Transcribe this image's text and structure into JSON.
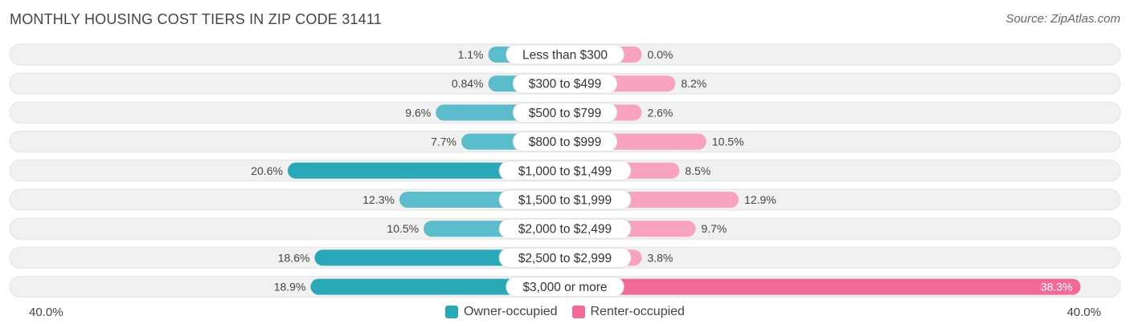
{
  "colors": {
    "owner": "#5bbccc",
    "owner_strong": "#2aa8b8",
    "renter": "#f7a3bf",
    "renter_strong": "#f06b95",
    "row_bg": "#f1f1f1"
  },
  "chart_data": {
    "type": "bar",
    "orientation": "horizontal-diverging",
    "title": "MONTHLY HOUSING COST TIERS IN ZIP CODE 31411",
    "source": "Source: ZipAtlas.com",
    "categories": [
      "Less than $300",
      "$300 to $499",
      "$500 to $799",
      "$800 to $999",
      "$1,000 to $1,499",
      "$1,500 to $1,999",
      "$2,000 to $2,499",
      "$2,500 to $2,999",
      "$3,000 or more"
    ],
    "series": [
      {
        "name": "Owner-occupied",
        "values": [
          1.1,
          0.84,
          9.6,
          7.7,
          20.6,
          12.3,
          10.5,
          18.6,
          18.9
        ],
        "labels": [
          "1.1%",
          "0.84%",
          "9.6%",
          "7.7%",
          "20.6%",
          "12.3%",
          "10.5%",
          "18.6%",
          "18.9%"
        ]
      },
      {
        "name": "Renter-occupied",
        "values": [
          0.0,
          8.2,
          2.6,
          10.5,
          8.5,
          12.9,
          9.7,
          3.8,
          38.3
        ],
        "labels": [
          "0.0%",
          "8.2%",
          "2.6%",
          "10.5%",
          "8.5%",
          "12.9%",
          "9.7%",
          "3.8%",
          "38.3%"
        ]
      }
    ],
    "xlim": [
      -40,
      40
    ],
    "axis_left_label": "40.0%",
    "axis_right_label": "40.0%",
    "legend_position": "bottom-center"
  }
}
